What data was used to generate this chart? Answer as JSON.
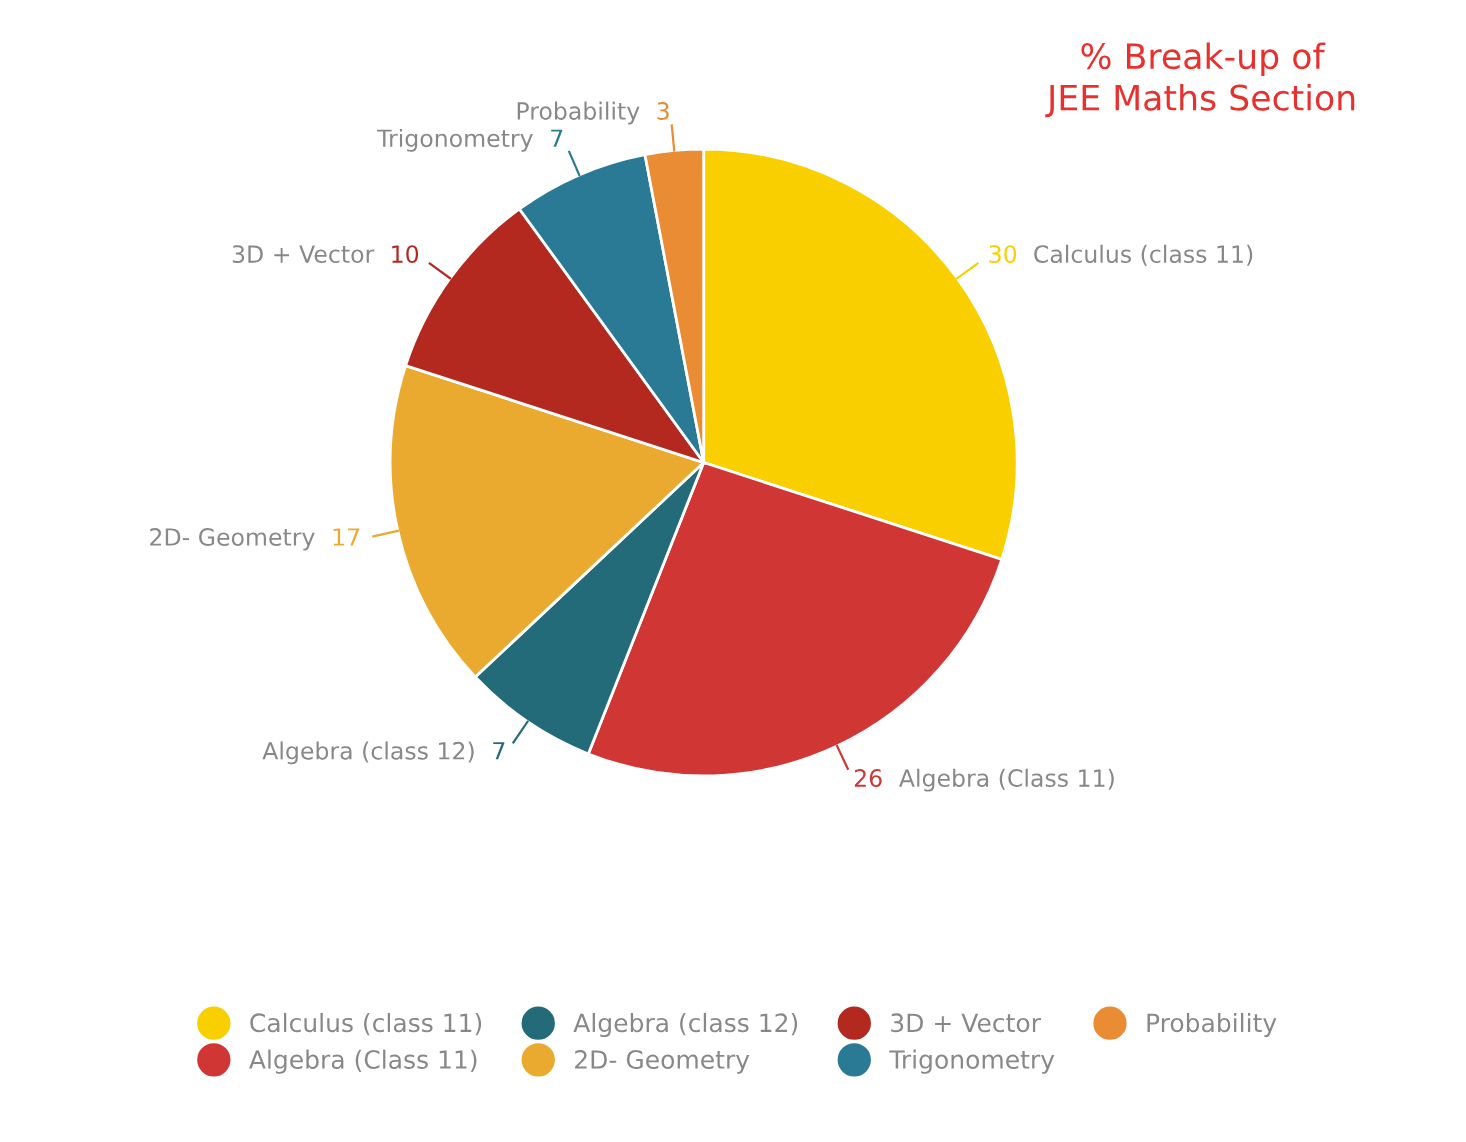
{
  "chart_data": {
    "type": "pie",
    "title": "% Break-up of\nJEE Maths Section",
    "categories": [
      "Calculus (class 11)",
      "Algebra (Class 11)",
      "Algebra (class 12)",
      "2D- Geometry",
      "3D + Vector",
      "Trigonometry",
      "Probability"
    ],
    "values": [
      30,
      26,
      7,
      17,
      10,
      7,
      3
    ],
    "colors": [
      "#f9cf00",
      "#cf3634",
      "#236b78",
      "#eaaa30",
      "#b3281f",
      "#2a7a96",
      "#e98c33"
    ],
    "data_labels": true,
    "legend": "bottom"
  }
}
